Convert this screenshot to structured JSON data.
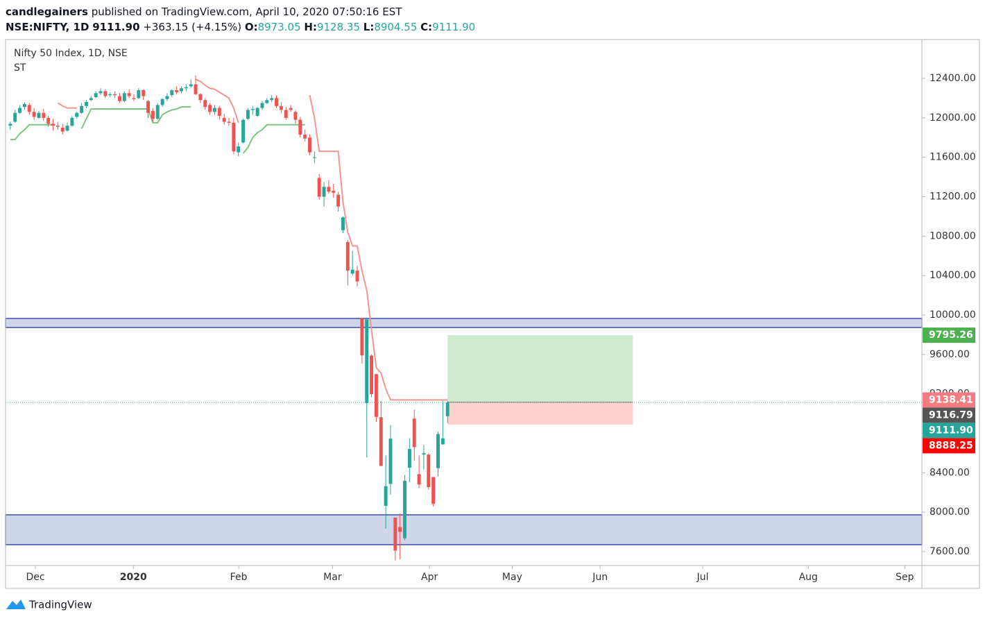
{
  "header": {
    "author": "candlegainers",
    "published": "published on TradingView.com, April 10, 2020 07:50:16 EST"
  },
  "quote": {
    "symbol": "NSE:NIFTY, 1D",
    "last": "9111.90",
    "change": "+363.15 (+4.15%)",
    "o_label": "O:",
    "o": "8973.05",
    "h_label": "H:",
    "h": "9128.35",
    "l_label": "L:",
    "l": "8904.55",
    "c_label": "C:",
    "c": "9111.90"
  },
  "footer": {
    "brand": "TradingView"
  },
  "chart_data": {
    "type": "candlestick",
    "title": "Nifty 50 Index, 1D, NSE",
    "up_color": "#26a69a",
    "down_color": "#ef5350",
    "xlim": [
      -1,
      191.8
    ],
    "xticks": [
      {
        "value": 5.28,
        "label": "Dec"
      },
      {
        "value": 25.9,
        "label": "2020"
      },
      {
        "value": 48.05,
        "label": "Feb"
      },
      {
        "value": 67.8,
        "label": "Mar"
      },
      {
        "value": 88.2,
        "label": "Apr"
      },
      {
        "value": 105.6,
        "label": "May"
      },
      {
        "value": 124.1,
        "label": "Jun"
      },
      {
        "value": 145.7,
        "label": "Jul"
      },
      {
        "value": 167.9,
        "label": "Aug"
      },
      {
        "value": 188.2,
        "label": "Sep"
      }
    ],
    "ylim": [
      7459,
      12794
    ],
    "yticks": [
      {
        "value": 7600,
        "label": "7600.00"
      },
      {
        "value": 8000,
        "label": "8000.00"
      },
      {
        "value": 8400,
        "label": "8400.00"
      },
      {
        "value": 8800,
        "label": "8800.00"
      },
      {
        "value": 9200,
        "label": "9200.00"
      },
      {
        "value": 9600,
        "label": "9600.00"
      },
      {
        "value": 10000,
        "label": "10000.00"
      },
      {
        "value": 10400,
        "label": "10400.00"
      },
      {
        "value": 10800,
        "label": "10800.00"
      },
      {
        "value": 11200,
        "label": "11200.00"
      },
      {
        "value": 11600,
        "label": "11600.00"
      },
      {
        "value": 12000,
        "label": "12000.00"
      },
      {
        "value": 12400,
        "label": "12400.00"
      }
    ],
    "grid": true,
    "ohlc": [
      [
        11920,
        11960,
        11880,
        11940
      ],
      [
        11960,
        12080,
        11950,
        12050
      ],
      [
        12050,
        12130,
        12040,
        12100
      ],
      [
        12110,
        12160,
        12080,
        12140
      ],
      [
        12130,
        12150,
        12030,
        12060
      ],
      [
        12060,
        12100,
        11980,
        12010
      ],
      [
        12000,
        12070,
        11990,
        12050
      ],
      [
        12050,
        12090,
        11970,
        12000
      ],
      [
        12000,
        12020,
        11910,
        11940
      ],
      [
        11940,
        11990,
        11870,
        11920
      ],
      [
        11920,
        11960,
        11880,
        11910
      ],
      [
        11900,
        11940,
        11830,
        11860
      ],
      [
        11870,
        11950,
        11860,
        11920
      ],
      [
        11920,
        12020,
        11910,
        12000
      ],
      [
        12010,
        12060,
        11990,
        12050
      ],
      [
        12050,
        12150,
        12040,
        12120
      ],
      [
        12120,
        12180,
        12100,
        12160
      ],
      [
        12180,
        12220,
        12170,
        12200
      ],
      [
        12210,
        12270,
        12200,
        12250
      ],
      [
        12250,
        12300,
        12230,
        12270
      ],
      [
        12270,
        12290,
        12200,
        12220
      ],
      [
        12230,
        12260,
        12210,
        12240
      ],
      [
        12240,
        12270,
        12200,
        12230
      ],
      [
        12220,
        12250,
        12150,
        12170
      ],
      [
        12170,
        12270,
        12160,
        12250
      ],
      [
        12250,
        12290,
        12200,
        12220
      ],
      [
        12200,
        12240,
        12170,
        12190
      ],
      [
        12200,
        12300,
        12190,
        12280
      ],
      [
        12280,
        12290,
        12180,
        12220
      ],
      [
        12170,
        12180,
        12000,
        12050
      ],
      [
        12070,
        12100,
        11960,
        11990
      ],
      [
        11990,
        12150,
        11980,
        12130
      ],
      [
        12130,
        12200,
        12110,
        12190
      ],
      [
        12190,
        12250,
        12170,
        12220
      ],
      [
        12230,
        12290,
        12210,
        12280
      ],
      [
        12280,
        12320,
        12240,
        12260
      ],
      [
        12270,
        12320,
        12250,
        12300
      ],
      [
        12300,
        12340,
        12270,
        12310
      ],
      [
        12320,
        12390,
        12300,
        12340
      ],
      [
        12340,
        12430,
        12230,
        12240
      ],
      [
        12240,
        12250,
        12150,
        12180
      ],
      [
        12180,
        12200,
        12080,
        12110
      ],
      [
        12130,
        12150,
        12030,
        12060
      ],
      [
        12060,
        12130,
        12030,
        12100
      ],
      [
        12100,
        12120,
        11980,
        12020
      ],
      [
        12000,
        12040,
        11930,
        11960
      ],
      [
        11960,
        12000,
        11920,
        11950
      ],
      [
        11950,
        12000,
        11630,
        11660
      ],
      [
        11650,
        11750,
        11610,
        11710
      ],
      [
        11750,
        11990,
        11740,
        11980
      ],
      [
        11990,
        12100,
        11980,
        12080
      ],
      [
        12080,
        12120,
        12030,
        12090
      ],
      [
        12020,
        12110,
        12010,
        12100
      ],
      [
        12100,
        12170,
        12080,
        12150
      ],
      [
        12150,
        12200,
        12140,
        12180
      ],
      [
        12180,
        12230,
        12160,
        12200
      ],
      [
        12200,
        12230,
        12100,
        12120
      ],
      [
        12120,
        12160,
        12050,
        12080
      ],
      [
        12080,
        12110,
        11980,
        12000
      ],
      [
        12100,
        12130,
        12060,
        12080
      ],
      [
        12060,
        12080,
        11940,
        11980
      ],
      [
        11980,
        12010,
        11800,
        11830
      ],
      [
        11830,
        11880,
        11760,
        11790
      ],
      [
        11800,
        11830,
        11620,
        11650
      ],
      [
        11600,
        11660,
        11540,
        11600
      ],
      [
        11390,
        11430,
        11170,
        11200
      ],
      [
        11200,
        11350,
        11100,
        11300
      ],
      [
        11300,
        11370,
        11230,
        11250
      ],
      [
        11260,
        11330,
        11190,
        11240
      ],
      [
        11220,
        11250,
        11050,
        11100
      ],
      [
        10860,
        11000,
        10830,
        10990
      ],
      [
        10740,
        10760,
        10300,
        10450
      ],
      [
        10420,
        10650,
        10400,
        10460
      ],
      [
        10450,
        10500,
        10290,
        10340
      ],
      [
        9970,
        9970,
        9508,
        9590
      ],
      [
        9107,
        9956,
        8555,
        9955
      ],
      [
        9588,
        9602,
        9165,
        9198
      ],
      [
        9400,
        9404,
        8916,
        8967
      ],
      [
        8963,
        9128,
        8468,
        8469
      ],
      [
        8064,
        8576,
        7832,
        8264
      ],
      [
        8286,
        8884,
        8178,
        8746
      ],
      [
        7945,
        7945,
        7511,
        7610
      ],
      [
        7849,
        7987,
        7520,
        7801
      ],
      [
        7735,
        8376,
        7714,
        8318
      ],
      [
        8451,
        8750,
        8304,
        8641
      ],
      [
        8949,
        9039,
        8522,
        8660
      ],
      [
        8385,
        8576,
        8244,
        8281
      ],
      [
        8584,
        8679,
        8432,
        8598
      ],
      [
        8584,
        8598,
        8228,
        8254
      ],
      [
        8356,
        8357,
        8056,
        8084
      ],
      [
        8446,
        8819,
        8361,
        8792
      ],
      [
        8688,
        9131,
        8683,
        8749
      ],
      [
        8973.05,
        9128.35,
        8904.55,
        9111.9
      ]
    ],
    "indicator": {
      "name": "ST",
      "up_color": "#7cc47f",
      "down_color": "#f59590",
      "up": [
        11780,
        11780,
        11840,
        11880,
        11930,
        11930,
        11930,
        11930,
        11930,
        11930,
        null,
        null,
        null,
        null,
        null,
        11890,
        11990,
        12090,
        12090,
        12090,
        12090,
        12090,
        12090,
        12090,
        12090,
        12090,
        12090,
        12090,
        12090,
        12090,
        11950,
        11950,
        12030,
        12060,
        12080,
        12090,
        12110,
        12110,
        12110,
        null,
        null,
        null,
        null,
        null,
        null,
        null,
        null,
        null,
        null,
        11640,
        11700,
        11800,
        11850,
        11880,
        11930,
        11930,
        11930,
        11930,
        11930,
        11930,
        11930,
        11930,
        11930,
        null,
        null,
        null,
        null,
        null,
        null,
        null,
        null,
        null,
        null,
        null,
        null,
        null,
        null,
        null,
        null,
        null,
        null,
        null,
        null,
        null,
        null,
        null,
        null,
        null,
        null,
        null,
        null,
        null,
        null
      ],
      "down": [
        null,
        null,
        null,
        null,
        null,
        null,
        null,
        null,
        null,
        null,
        12150,
        12120,
        12100,
        12100,
        12100,
        null,
        null,
        null,
        null,
        null,
        null,
        null,
        null,
        null,
        null,
        null,
        null,
        null,
        null,
        null,
        null,
        null,
        null,
        null,
        null,
        null,
        null,
        null,
        null,
        12390,
        12370,
        12330,
        12300,
        12290,
        12260,
        12230,
        12200,
        12100,
        11950,
        null,
        null,
        null,
        null,
        null,
        null,
        null,
        null,
        null,
        null,
        null,
        null,
        null,
        null,
        12230,
        12000,
        11660,
        11660,
        11660,
        11660,
        11660,
        11150,
        10840,
        10700,
        10700,
        10450,
        10250,
        9850,
        9465,
        9410,
        9250,
        9140,
        9138.41,
        9138.41,
        9138.41,
        9138.41,
        9138.41,
        9138.41,
        9138.41,
        9138.41,
        9138.41,
        9138.41,
        9138.41,
        9138.41
      ]
    },
    "zones": [
      {
        "top": 9965,
        "bottom": 9873
      },
      {
        "top": 7973,
        "bottom": 7670
      }
    ],
    "position": {
      "start": 92,
      "end": 131,
      "entry": 9116.79,
      "target": 9795.26,
      "stop": 8888.25
    },
    "price_markers": [
      {
        "value": 9795.26,
        "color": "#4caf50"
      },
      {
        "value": 9138.41,
        "color": "#f77c80"
      },
      {
        "value": 9116.79,
        "color": "#555555"
      },
      {
        "value": 9111.9,
        "label": "9111.90",
        "color": "#26a69a"
      },
      {
        "value": 8888.25,
        "color": "#ff0000"
      }
    ]
  }
}
